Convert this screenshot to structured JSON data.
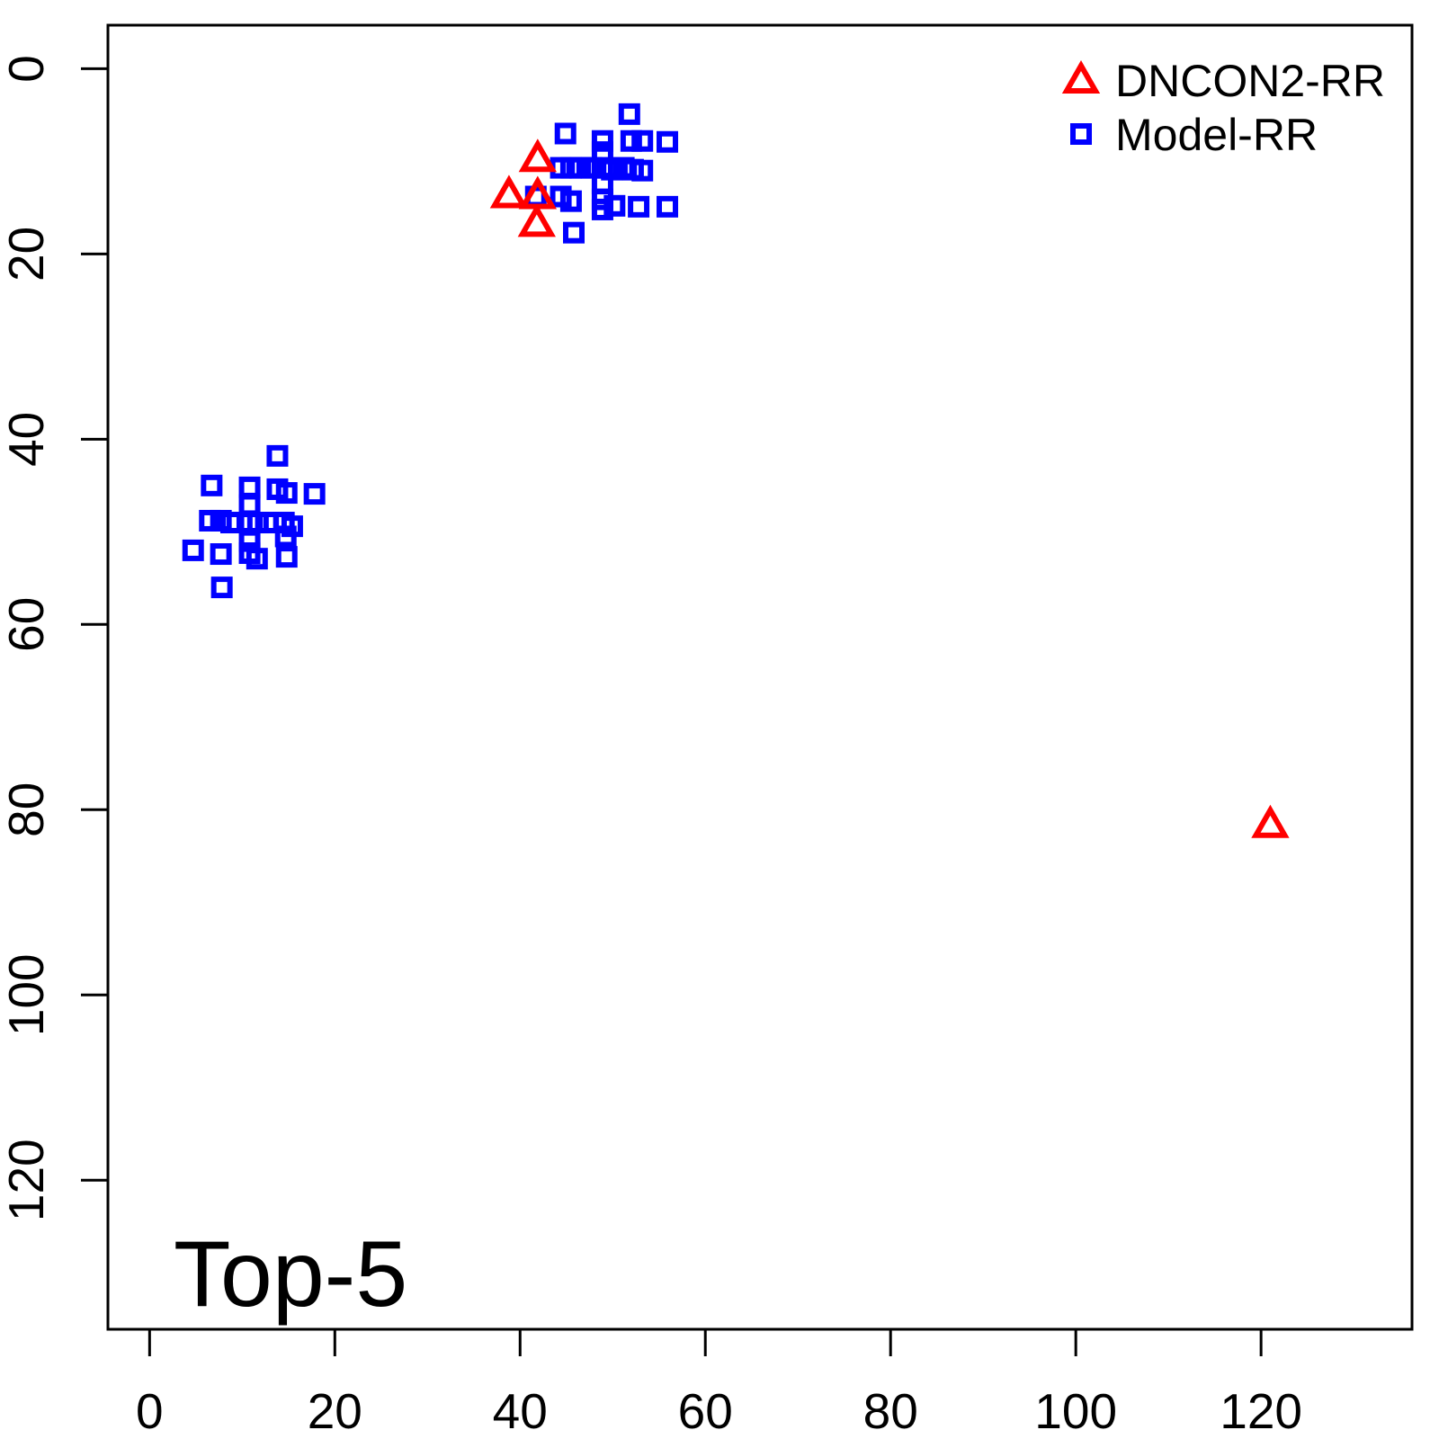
{
  "figure": {
    "background": "#ffffff",
    "axis_color": "#000000",
    "annotation_label": "Top-5"
  },
  "legend": {
    "position": "top-right",
    "items": [
      {
        "label": "DNCON2-RR",
        "marker": "triangle",
        "color": "#ff0000"
      },
      {
        "label": "Model-RR",
        "marker": "square",
        "color": "#0000ff"
      }
    ]
  },
  "chart_data": {
    "type": "scatter",
    "title": "Top-5",
    "xlabel": "",
    "ylabel": "",
    "grid": false,
    "legend_position": "top-right",
    "x_ticks": [
      0,
      20,
      40,
      60,
      80,
      100,
      120
    ],
    "y_ticks": [
      0,
      20,
      40,
      60,
      80,
      100,
      120
    ],
    "xlim": [
      -4.5,
      136.3
    ],
    "ylim": [
      -4.7,
      136.1
    ],
    "y_axis_increases_downward": true,
    "series": [
      {
        "name": "Model-RR",
        "marker": "square",
        "color": "#0000ff",
        "points": [
          [
            51.8,
            4.9
          ],
          [
            44.9,
            7.0
          ],
          [
            48.9,
            7.8
          ],
          [
            52.0,
            7.8
          ],
          [
            53.2,
            7.8
          ],
          [
            55.9,
            7.9
          ],
          [
            48.9,
            9.0
          ],
          [
            44.4,
            10.7
          ],
          [
            45.5,
            10.7
          ],
          [
            46.5,
            10.7
          ],
          [
            47.7,
            10.7
          ],
          [
            48.9,
            10.7
          ],
          [
            49.9,
            10.9
          ],
          [
            51.2,
            10.7
          ],
          [
            52.2,
            10.9
          ],
          [
            53.2,
            11.0
          ],
          [
            48.9,
            12.4
          ],
          [
            41.7,
            13.8
          ],
          [
            44.4,
            13.8
          ],
          [
            45.5,
            14.3
          ],
          [
            48.9,
            14.1
          ],
          [
            48.9,
            15.2
          ],
          [
            50.2,
            14.8
          ],
          [
            52.8,
            14.9
          ],
          [
            55.9,
            14.9
          ],
          [
            45.8,
            17.7
          ],
          [
            13.8,
            41.8
          ],
          [
            6.7,
            45.0
          ],
          [
            10.8,
            45.2
          ],
          [
            13.8,
            45.4
          ],
          [
            14.8,
            45.8
          ],
          [
            17.8,
            45.9
          ],
          [
            10.8,
            47.1
          ],
          [
            6.5,
            48.8
          ],
          [
            7.7,
            48.8
          ],
          [
            8.8,
            49.0
          ],
          [
            10.8,
            49.0
          ],
          [
            11.7,
            49.0
          ],
          [
            12.8,
            49.0
          ],
          [
            14.5,
            49.0
          ],
          [
            15.4,
            49.4
          ],
          [
            14.7,
            50.5
          ],
          [
            10.8,
            51.0
          ],
          [
            4.7,
            52.0
          ],
          [
            7.7,
            52.4
          ],
          [
            10.8,
            52.3
          ],
          [
            11.6,
            52.9
          ],
          [
            14.8,
            52.7
          ],
          [
            7.8,
            56.0
          ]
        ]
      },
      {
        "name": "DNCON2-RR",
        "marker": "triangle",
        "color": "#ff0000",
        "points": [
          [
            41.9,
            9.7
          ],
          [
            38.8,
            13.6
          ],
          [
            41.9,
            13.7
          ],
          [
            41.8,
            16.7
          ],
          [
            121.0,
            81.6
          ]
        ]
      }
    ]
  }
}
